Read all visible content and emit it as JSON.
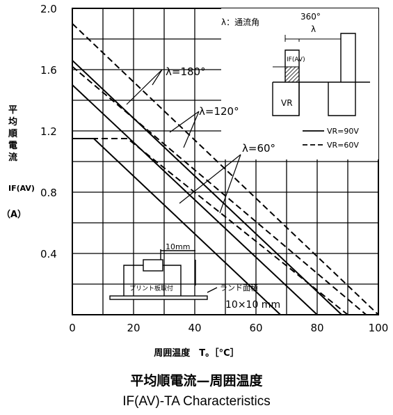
{
  "chart_data": {
    "type": "line",
    "title": "平均順電流—周囲温度",
    "subtitle": "IF(AV)-TA Characteristics",
    "xlabel": "周囲温度　T。［°C］",
    "ylabel_lines": [
      "平",
      "均",
      "順",
      "電",
      "流"
    ],
    "ylabel_symbol": "IF(AV)",
    "ylabel_unit": "（A）",
    "xlim": [
      0,
      100
    ],
    "ylim": [
      0,
      2.0
    ],
    "x_ticks": [
      "0",
      "20",
      "40",
      "60",
      "80",
      "100"
    ],
    "y_ticks": [
      "0.4",
      "0.8",
      "1.2",
      "1.6",
      "2.0"
    ],
    "grid": true,
    "legend_entries": [
      "VR=90V",
      "VR=60V"
    ],
    "series": [
      {
        "label": "λ=180°",
        "vr": "90V",
        "style": "solid",
        "x": [
          0,
          88
        ],
        "y": [
          1.66,
          0
        ]
      },
      {
        "label": "λ=180°",
        "vr": "60V",
        "style": "dashed",
        "x": [
          0,
          100
        ],
        "y": [
          1.9,
          0
        ]
      },
      {
        "label": "λ=120°",
        "vr": "90V",
        "style": "solid",
        "x": [
          0,
          80
        ],
        "y": [
          1.5,
          0
        ]
      },
      {
        "label": "λ=120°",
        "vr": "60V",
        "style": "dashed",
        "x": [
          0,
          96
        ],
        "y": [
          1.62,
          0
        ]
      },
      {
        "label": "λ=60°",
        "vr": "90V",
        "style": "solid",
        "x": [
          0,
          7,
          68
        ],
        "y": [
          1.15,
          1.15,
          0
        ]
      },
      {
        "label": "λ=60°",
        "vr": "60V",
        "style": "dashed",
        "x": [
          0,
          18,
          90
        ],
        "y": [
          1.15,
          1.15,
          0
        ]
      }
    ],
    "annotations": {
      "lambda_180": "λ=180°",
      "lambda_120": "λ=120°",
      "lambda_60": "λ=60°",
      "conduction_angle": "λ：通流角",
      "period": "360°",
      "lambda": "λ",
      "inset_current": "IF(AV)",
      "inset_voltage": "VR",
      "board_mount": "プリント板取付",
      "lead_length": "10mm",
      "land_area": "ランド面積",
      "land_size": "10×10 mm"
    }
  }
}
